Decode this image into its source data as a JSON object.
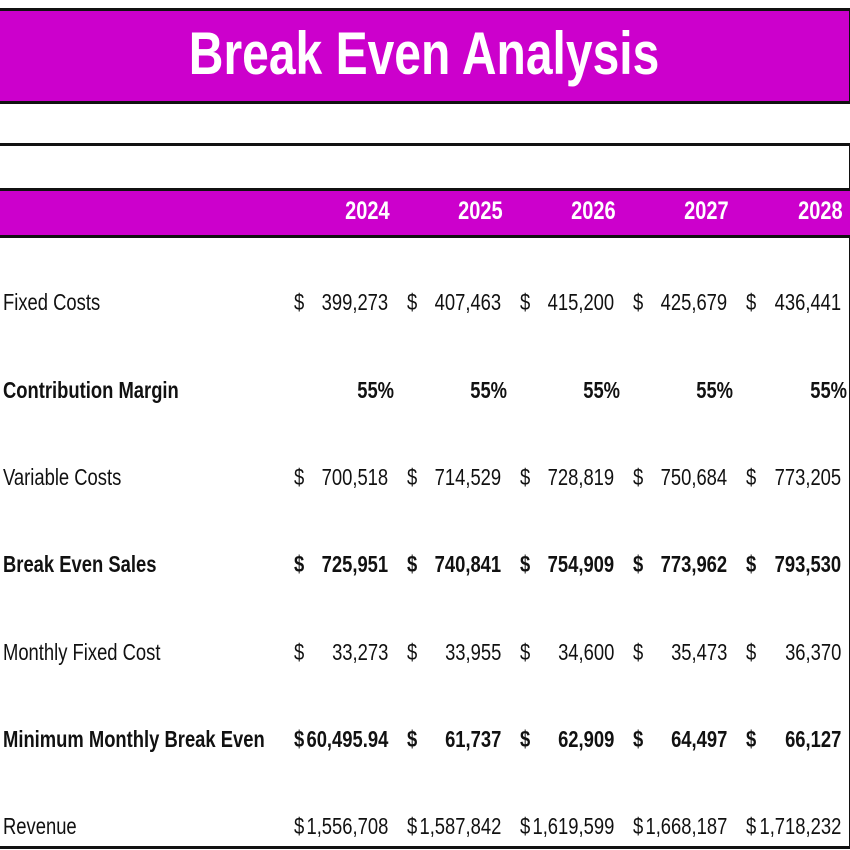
{
  "title": "Break Even Analysis",
  "colors": {
    "accent": "#cc00cc",
    "header_text": "#ffffff",
    "border": "#111111"
  },
  "years": [
    "2024",
    "2025",
    "2026",
    "2027",
    "2028"
  ],
  "rows": [
    {
      "label": "Fixed Costs",
      "bold": false,
      "currency": true,
      "values": [
        "399,273",
        "407,463",
        "415,200",
        "425,679",
        "436,441"
      ]
    },
    {
      "label": "Contribution Margin",
      "bold": true,
      "currency": false,
      "values": [
        "55%",
        "55%",
        "55%",
        "55%",
        "55%"
      ]
    },
    {
      "label": "Variable Costs",
      "bold": false,
      "currency": true,
      "values": [
        "700,518",
        "714,529",
        "728,819",
        "750,684",
        "773,205"
      ]
    },
    {
      "label": "Break Even Sales",
      "bold": true,
      "currency": true,
      "values": [
        "725,951",
        "740,841",
        "754,909",
        "773,962",
        "793,530"
      ]
    },
    {
      "label": "Monthly Fixed Cost",
      "bold": false,
      "currency": true,
      "values": [
        "33,273",
        "33,955",
        "34,600",
        "35,473",
        "36,370"
      ]
    },
    {
      "label": "Minimum Monthly Break Even",
      "bold": true,
      "currency": true,
      "values": [
        "60,495.94",
        "61,737",
        "62,909",
        "64,497",
        "66,127"
      ]
    },
    {
      "label": "Revenue",
      "bold": false,
      "currency": true,
      "values": [
        "1,556,708",
        "1,587,842",
        "1,619,599",
        "1,668,187",
        "1,718,232"
      ]
    }
  ],
  "currency_symbol": "$"
}
